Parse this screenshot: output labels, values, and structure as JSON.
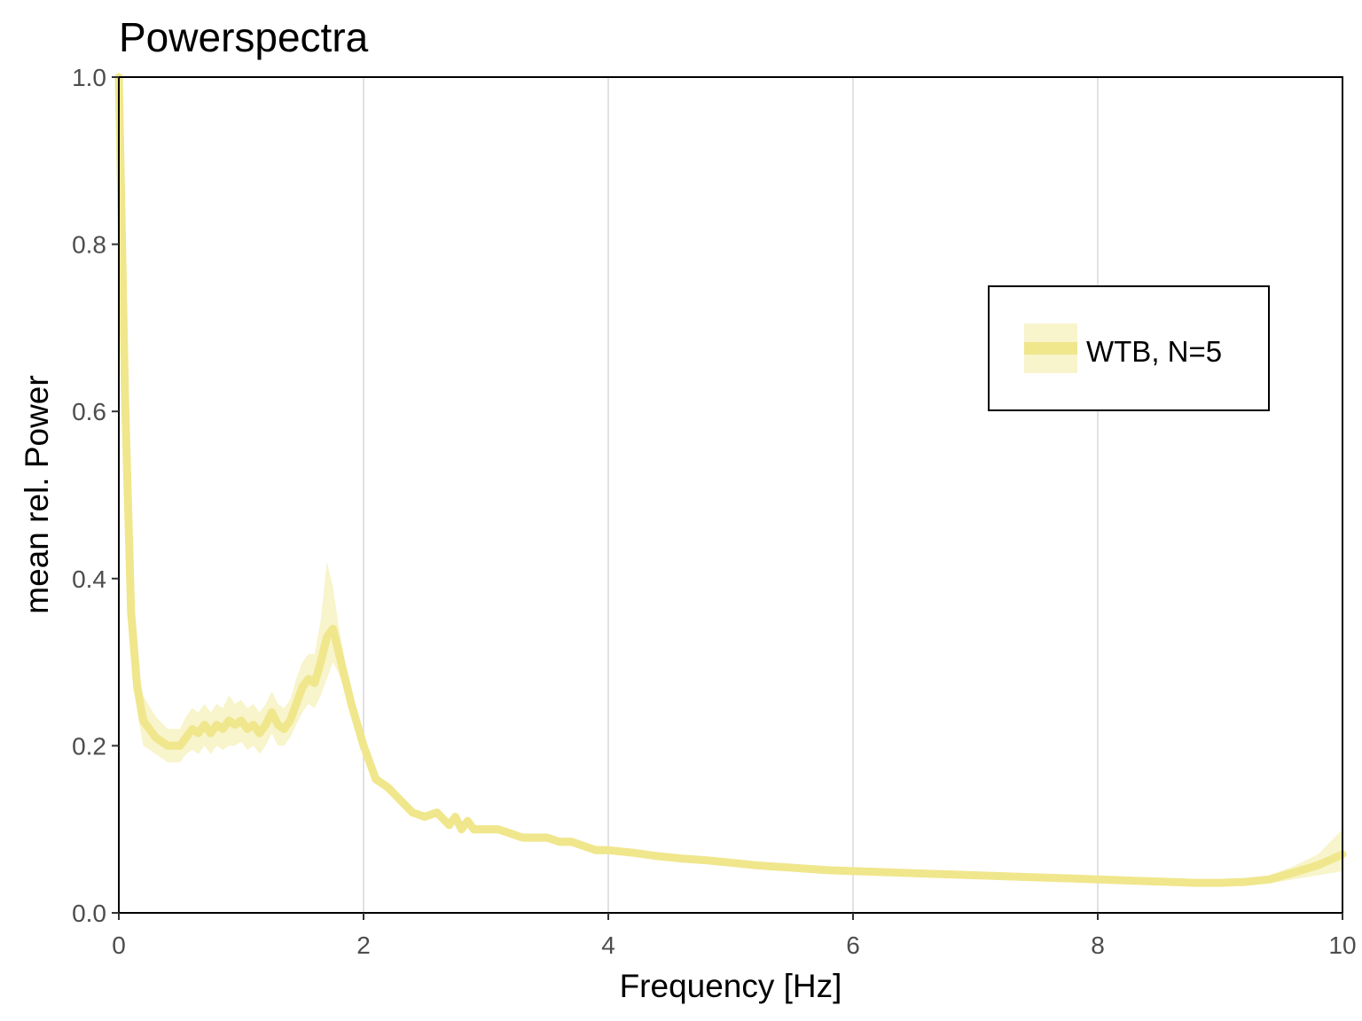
{
  "chart_data": {
    "type": "line",
    "title": "Powerspectra",
    "xlabel": "Frequency [Hz]",
    "ylabel": "mean rel. Power",
    "xlim": [
      0,
      10
    ],
    "ylim": [
      0,
      1
    ],
    "x_ticks": [
      "0",
      "2",
      "4",
      "6",
      "8",
      "10"
    ],
    "y_ticks": [
      "0.0",
      "0.2",
      "0.4",
      "0.6",
      "0.8",
      "1.0"
    ],
    "grid": "vertical major lines only",
    "legend_position": "right",
    "series": [
      {
        "name": "WTB, N=5",
        "color": "#f0e68c",
        "band": "shaded mean ± error",
        "x": [
          0.0,
          0.05,
          0.1,
          0.15,
          0.2,
          0.3,
          0.4,
          0.5,
          0.55,
          0.6,
          0.65,
          0.7,
          0.75,
          0.8,
          0.85,
          0.9,
          0.95,
          1.0,
          1.05,
          1.1,
          1.15,
          1.2,
          1.25,
          1.3,
          1.35,
          1.4,
          1.45,
          1.5,
          1.55,
          1.6,
          1.65,
          1.7,
          1.75,
          1.8,
          1.85,
          1.9,
          2.0,
          2.1,
          2.2,
          2.3,
          2.4,
          2.5,
          2.6,
          2.7,
          2.75,
          2.8,
          2.85,
          2.9,
          3.0,
          3.1,
          3.2,
          3.3,
          3.4,
          3.5,
          3.6,
          3.7,
          3.8,
          3.9,
          4.0,
          4.2,
          4.4,
          4.6,
          4.8,
          5.0,
          5.2,
          5.4,
          5.6,
          5.8,
          6.0,
          6.2,
          6.4,
          6.6,
          6.8,
          7.0,
          7.2,
          7.4,
          7.6,
          7.8,
          8.0,
          8.2,
          8.4,
          8.6,
          8.8,
          9.0,
          9.2,
          9.4,
          9.6,
          9.8,
          10.0
        ],
        "y": [
          1.0,
          0.62,
          0.36,
          0.27,
          0.23,
          0.21,
          0.2,
          0.2,
          0.21,
          0.22,
          0.215,
          0.225,
          0.215,
          0.225,
          0.22,
          0.23,
          0.225,
          0.23,
          0.22,
          0.225,
          0.215,
          0.225,
          0.24,
          0.225,
          0.22,
          0.23,
          0.25,
          0.27,
          0.28,
          0.275,
          0.3,
          0.33,
          0.34,
          0.31,
          0.28,
          0.25,
          0.2,
          0.16,
          0.15,
          0.135,
          0.12,
          0.115,
          0.12,
          0.105,
          0.115,
          0.1,
          0.11,
          0.1,
          0.1,
          0.1,
          0.095,
          0.09,
          0.09,
          0.09,
          0.085,
          0.085,
          0.08,
          0.075,
          0.075,
          0.072,
          0.068,
          0.065,
          0.063,
          0.06,
          0.057,
          0.055,
          0.053,
          0.051,
          0.05,
          0.049,
          0.048,
          0.047,
          0.046,
          0.045,
          0.044,
          0.043,
          0.042,
          0.041,
          0.04,
          0.039,
          0.038,
          0.037,
          0.036,
          0.036,
          0.037,
          0.04,
          0.048,
          0.057,
          0.07
        ],
        "lower": [
          0.99,
          0.58,
          0.33,
          0.24,
          0.2,
          0.19,
          0.18,
          0.18,
          0.19,
          0.195,
          0.19,
          0.2,
          0.19,
          0.2,
          0.195,
          0.2,
          0.2,
          0.205,
          0.195,
          0.2,
          0.19,
          0.2,
          0.215,
          0.2,
          0.2,
          0.21,
          0.225,
          0.24,
          0.25,
          0.245,
          0.26,
          0.28,
          0.3,
          0.285,
          0.265,
          0.24,
          0.195,
          0.155,
          0.145,
          0.13,
          0.115,
          0.11,
          0.115,
          0.1,
          0.11,
          0.095,
          0.105,
          0.095,
          0.095,
          0.095,
          0.09,
          0.085,
          0.085,
          0.085,
          0.08,
          0.08,
          0.075,
          0.07,
          0.07,
          0.068,
          0.064,
          0.061,
          0.059,
          0.056,
          0.053,
          0.051,
          0.049,
          0.047,
          0.046,
          0.045,
          0.044,
          0.043,
          0.042,
          0.041,
          0.04,
          0.039,
          0.038,
          0.037,
          0.036,
          0.035,
          0.034,
          0.033,
          0.032,
          0.032,
          0.033,
          0.035,
          0.04,
          0.045,
          0.05
        ],
        "upper": [
          1.0,
          0.66,
          0.39,
          0.3,
          0.26,
          0.235,
          0.22,
          0.22,
          0.235,
          0.245,
          0.24,
          0.25,
          0.24,
          0.25,
          0.245,
          0.26,
          0.25,
          0.255,
          0.245,
          0.25,
          0.24,
          0.25,
          0.265,
          0.25,
          0.245,
          0.255,
          0.28,
          0.3,
          0.31,
          0.31,
          0.35,
          0.42,
          0.39,
          0.34,
          0.3,
          0.26,
          0.205,
          0.165,
          0.155,
          0.14,
          0.125,
          0.12,
          0.125,
          0.11,
          0.12,
          0.105,
          0.115,
          0.105,
          0.105,
          0.105,
          0.1,
          0.095,
          0.095,
          0.095,
          0.09,
          0.09,
          0.085,
          0.08,
          0.08,
          0.076,
          0.072,
          0.069,
          0.067,
          0.064,
          0.061,
          0.059,
          0.057,
          0.055,
          0.054,
          0.053,
          0.052,
          0.051,
          0.05,
          0.049,
          0.048,
          0.047,
          0.046,
          0.045,
          0.044,
          0.043,
          0.042,
          0.041,
          0.04,
          0.04,
          0.041,
          0.045,
          0.056,
          0.07,
          0.1
        ]
      }
    ]
  }
}
